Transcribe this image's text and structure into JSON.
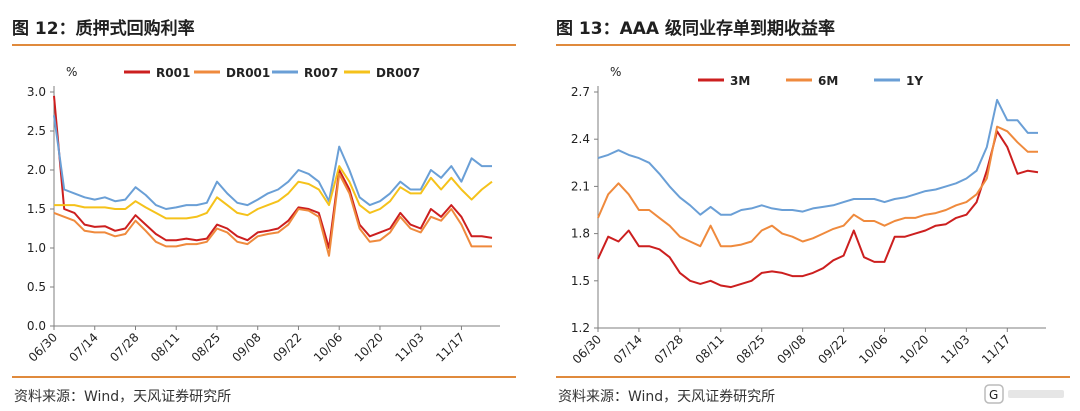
{
  "charts": [
    {
      "title": "图 12：质押式回购利率",
      "source": "资料来源：Wind，天风证券研究所",
      "unit": "%",
      "y_ticks": [
        "3.0",
        "2.5",
        "2.0",
        "1.5",
        "1.0",
        "0.5",
        "0.0"
      ],
      "x_ticks": [
        "06/30",
        "07/14",
        "07/28",
        "08/11",
        "08/25",
        "09/08",
        "09/22",
        "10/06",
        "10/20",
        "11/03",
        "11/17"
      ]
    },
    {
      "title": "图 13：AAA 级同业存单到期收益率",
      "source": "资料来源：Wind，天风证券研究所",
      "unit": "%",
      "y_ticks": [
        "2.7",
        "2.4",
        "2.1",
        "1.8",
        "1.5",
        "1.2"
      ],
      "x_ticks": [
        "06/30",
        "07/14",
        "07/28",
        "08/11",
        "08/25",
        "09/08",
        "09/22",
        "10/06",
        "10/20",
        "11/03",
        "11/17"
      ]
    }
  ],
  "chart_data": [
    {
      "type": "line",
      "title": "图 12：质押式回购利率",
      "ylabel": "%",
      "ylim": [
        0,
        3.0
      ],
      "x": [
        "06/30",
        "07/04",
        "07/07",
        "07/10",
        "07/14",
        "07/18",
        "07/21",
        "07/25",
        "07/28",
        "08/01",
        "08/04",
        "08/08",
        "08/11",
        "08/15",
        "08/18",
        "08/22",
        "08/25",
        "08/29",
        "09/01",
        "09/05",
        "09/08",
        "09/12",
        "09/15",
        "09/19",
        "09/22",
        "09/26",
        "09/29",
        "10/03",
        "10/06",
        "10/10",
        "10/13",
        "10/17",
        "10/20",
        "10/24",
        "10/27",
        "10/31",
        "11/03",
        "11/07",
        "11/10",
        "11/14",
        "11/17",
        "11/21",
        "11/24",
        "11/28"
      ],
      "series": [
        {
          "name": "R001",
          "color": "#cc1f1f",
          "values": [
            2.95,
            1.5,
            1.45,
            1.3,
            1.27,
            1.28,
            1.22,
            1.25,
            1.42,
            1.3,
            1.18,
            1.1,
            1.1,
            1.12,
            1.1,
            1.12,
            1.3,
            1.25,
            1.15,
            1.1,
            1.2,
            1.22,
            1.25,
            1.35,
            1.52,
            1.5,
            1.45,
            1.0,
            2.0,
            1.75,
            1.3,
            1.15,
            1.2,
            1.25,
            1.45,
            1.3,
            1.25,
            1.5,
            1.4,
            1.55,
            1.4,
            1.15,
            1.15,
            1.13
          ]
        },
        {
          "name": "DR001",
          "color": "#ef8a3d",
          "values": [
            1.45,
            1.4,
            1.35,
            1.22,
            1.2,
            1.2,
            1.15,
            1.18,
            1.35,
            1.22,
            1.08,
            1.02,
            1.02,
            1.05,
            1.05,
            1.08,
            1.25,
            1.2,
            1.08,
            1.05,
            1.15,
            1.18,
            1.2,
            1.3,
            1.5,
            1.48,
            1.4,
            0.9,
            1.95,
            1.7,
            1.25,
            1.08,
            1.1,
            1.2,
            1.4,
            1.25,
            1.2,
            1.4,
            1.35,
            1.5,
            1.3,
            1.02,
            1.02,
            1.02
          ]
        },
        {
          "name": "R007",
          "color": "#6a9fd6",
          "values": [
            2.7,
            1.75,
            1.7,
            1.65,
            1.62,
            1.65,
            1.6,
            1.62,
            1.78,
            1.68,
            1.55,
            1.5,
            1.52,
            1.55,
            1.55,
            1.58,
            1.85,
            1.7,
            1.58,
            1.55,
            1.62,
            1.7,
            1.75,
            1.85,
            2.0,
            1.95,
            1.85,
            1.6,
            2.3,
            2.0,
            1.65,
            1.55,
            1.6,
            1.7,
            1.85,
            1.75,
            1.75,
            2.0,
            1.9,
            2.05,
            1.85,
            2.15,
            2.05,
            2.05
          ]
        },
        {
          "name": "DR007",
          "color": "#f5c21b",
          "values": [
            1.55,
            1.55,
            1.55,
            1.52,
            1.52,
            1.52,
            1.5,
            1.5,
            1.6,
            1.52,
            1.45,
            1.38,
            1.38,
            1.38,
            1.4,
            1.45,
            1.65,
            1.55,
            1.45,
            1.42,
            1.5,
            1.55,
            1.6,
            1.7,
            1.85,
            1.82,
            1.75,
            1.55,
            2.05,
            1.85,
            1.55,
            1.45,
            1.5,
            1.6,
            1.78,
            1.7,
            1.7,
            1.9,
            1.75,
            1.9,
            1.75,
            1.62,
            1.75,
            1.85
          ]
        }
      ],
      "legend": "top",
      "grid": false
    },
    {
      "type": "line",
      "title": "图 13：AAA 级同业存单到期收益率",
      "ylabel": "%",
      "ylim": [
        1.2,
        2.7
      ],
      "x": [
        "06/30",
        "07/04",
        "07/07",
        "07/10",
        "07/14",
        "07/18",
        "07/21",
        "07/25",
        "07/28",
        "08/01",
        "08/04",
        "08/08",
        "08/11",
        "08/15",
        "08/18",
        "08/22",
        "08/25",
        "08/29",
        "09/01",
        "09/05",
        "09/08",
        "09/12",
        "09/15",
        "09/19",
        "09/22",
        "09/26",
        "09/29",
        "10/03",
        "10/06",
        "10/10",
        "10/13",
        "10/17",
        "10/20",
        "10/24",
        "10/27",
        "10/31",
        "11/03",
        "11/07",
        "11/10",
        "11/14",
        "11/17",
        "11/21",
        "11/24",
        "11/28"
      ],
      "series": [
        {
          "name": "3M",
          "color": "#cc1f1f",
          "values": [
            1.64,
            1.78,
            1.75,
            1.82,
            1.72,
            1.72,
            1.7,
            1.65,
            1.55,
            1.5,
            1.48,
            1.5,
            1.47,
            1.46,
            1.48,
            1.5,
            1.55,
            1.56,
            1.55,
            1.53,
            1.53,
            1.55,
            1.58,
            1.63,
            1.66,
            1.82,
            1.65,
            1.62,
            1.62,
            1.78,
            1.78,
            1.8,
            1.82,
            1.85,
            1.86,
            1.9,
            1.92,
            2.0,
            2.2,
            2.45,
            2.35,
            2.18,
            2.2,
            2.19
          ]
        },
        {
          "name": "6M",
          "color": "#ef8a3d",
          "values": [
            1.9,
            2.05,
            2.12,
            2.05,
            1.95,
            1.95,
            1.9,
            1.85,
            1.78,
            1.75,
            1.72,
            1.85,
            1.72,
            1.72,
            1.73,
            1.75,
            1.82,
            1.85,
            1.8,
            1.78,
            1.75,
            1.77,
            1.8,
            1.83,
            1.85,
            1.92,
            1.88,
            1.88,
            1.85,
            1.88,
            1.9,
            1.9,
            1.92,
            1.93,
            1.95,
            1.98,
            2.0,
            2.05,
            2.15,
            2.48,
            2.45,
            2.38,
            2.32,
            2.32
          ]
        },
        {
          "name": "1Y",
          "color": "#6a9fd6",
          "values": [
            2.28,
            2.3,
            2.33,
            2.3,
            2.28,
            2.25,
            2.18,
            2.1,
            2.03,
            1.98,
            1.92,
            1.97,
            1.92,
            1.92,
            1.95,
            1.96,
            1.98,
            1.96,
            1.95,
            1.95,
            1.94,
            1.96,
            1.97,
            1.98,
            2.0,
            2.02,
            2.02,
            2.02,
            2.0,
            2.02,
            2.03,
            2.05,
            2.07,
            2.08,
            2.1,
            2.12,
            2.15,
            2.2,
            2.35,
            2.65,
            2.52,
            2.52,
            2.44,
            2.44
          ]
        }
      ],
      "legend": "top",
      "grid": false
    }
  ]
}
